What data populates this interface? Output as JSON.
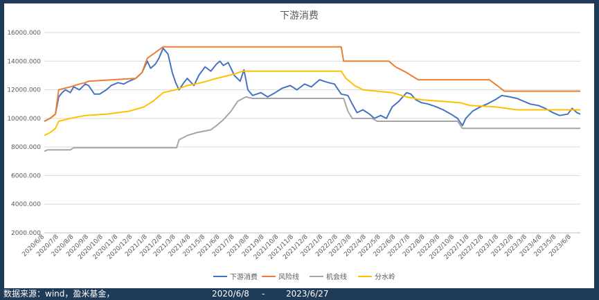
{
  "footer": {
    "source": "数据来源：wind，盈米基金，",
    "start_date": "2020/6/8",
    "separator": "-",
    "end_date": "2023/6/27"
  },
  "colors": {
    "background": "#1f3b57",
    "series": [
      "#4472c4",
      "#ed7d31",
      "#a5a5a5",
      "#ffc000"
    ]
  },
  "chart_data": {
    "type": "line",
    "title": "下游消费",
    "xlabel": "",
    "ylabel": "",
    "ylim": [
      2000,
      16000
    ],
    "yticks": [
      2000,
      4000,
      6000,
      8000,
      10000,
      12000,
      14000,
      16000
    ],
    "ytick_labels": [
      "2000.000",
      "4000.000",
      "6000.000",
      "8000.000",
      "10000.000",
      "12000.000",
      "14000.000",
      "16000.000"
    ],
    "xlim": [
      "2020/6/8",
      "2023/6/27"
    ],
    "xtick_labels": [
      "2020/6/8",
      "2020/7/8",
      "2020/8/8",
      "2020/9/8",
      "2020/10/8",
      "2020/11/8",
      "2020/12/8",
      "2021/1/8",
      "2021/2/8",
      "2021/3/8",
      "2021/4/8",
      "2021/5/8",
      "2021/6/8",
      "2021/7/8",
      "2021/8/8",
      "2021/9/8",
      "2021/10/8",
      "2021/11/8",
      "2021/12/8",
      "2022/1/8",
      "2022/2/8",
      "2022/3/8",
      "2022/4/8",
      "2022/5/8",
      "2022/6/8",
      "2022/7/8",
      "2022/8/8",
      "2022/9/8",
      "2022/10/8",
      "2022/11/8",
      "2022/12/8",
      "2023/1/8",
      "2023/2/8",
      "2023/3/8",
      "2023/4/8",
      "2023/5/8",
      "2023/6/8"
    ],
    "grid": true,
    "legend": "bottom",
    "series": [
      {
        "name": "下游消费",
        "points": [
          [
            "2020/6/8",
            9800
          ],
          [
            "2020/6/20",
            10000
          ],
          [
            "2020/7/1",
            10300
          ],
          [
            "2020/7/8",
            11500
          ],
          [
            "2020/7/15",
            11800
          ],
          [
            "2020/7/22",
            12000
          ],
          [
            "2020/8/1",
            11800
          ],
          [
            "2020/8/8",
            12200
          ],
          [
            "2020/8/20",
            12000
          ],
          [
            "2020/9/1",
            12400
          ],
          [
            "2020/9/8",
            12300
          ],
          [
            "2020/9/20",
            11700
          ],
          [
            "2020/10/1",
            11700
          ],
          [
            "2020/10/15",
            12000
          ],
          [
            "2020/10/25",
            12300
          ],
          [
            "2020/11/8",
            12500
          ],
          [
            "2020/11/20",
            12400
          ],
          [
            "2020/12/1",
            12600
          ],
          [
            "2020/12/15",
            12800
          ],
          [
            "2020/12/28",
            13200
          ],
          [
            "2021/1/8",
            14000
          ],
          [
            "2021/1/15",
            13500
          ],
          [
            "2021/1/25",
            13800
          ],
          [
            "2021/2/1",
            14200
          ],
          [
            "2021/2/10",
            14900
          ],
          [
            "2021/2/20",
            14500
          ],
          [
            "2021/3/1",
            13200
          ],
          [
            "2021/3/8",
            12500
          ],
          [
            "2021/3/15",
            12000
          ],
          [
            "2021/3/25",
            12500
          ],
          [
            "2021/4/1",
            12800
          ],
          [
            "2021/4/15",
            12300
          ],
          [
            "2021/4/25",
            13000
          ],
          [
            "2021/5/8",
            13600
          ],
          [
            "2021/5/20",
            13300
          ],
          [
            "2021/6/1",
            13800
          ],
          [
            "2021/6/8",
            14000
          ],
          [
            "2021/6/15",
            13700
          ],
          [
            "2021/6/25",
            13900
          ],
          [
            "2021/7/1",
            13500
          ],
          [
            "2021/7/8",
            13000
          ],
          [
            "2021/7/20",
            12600
          ],
          [
            "2021/7/28",
            13400
          ],
          [
            "2021/8/5",
            12000
          ],
          [
            "2021/8/15",
            11600
          ],
          [
            "2021/9/1",
            11800
          ],
          [
            "2021/9/15",
            11500
          ],
          [
            "2021/10/1",
            11800
          ],
          [
            "2021/10/15",
            12100
          ],
          [
            "2021/11/1",
            12300
          ],
          [
            "2021/11/15",
            12000
          ],
          [
            "2021/12/1",
            12400
          ],
          [
            "2021/12/15",
            12200
          ],
          [
            "2022/1/1",
            12700
          ],
          [
            "2022/1/10",
            12600
          ],
          [
            "2022/1/20",
            12500
          ],
          [
            "2022/2/1",
            12400
          ],
          [
            "2022/2/15",
            11700
          ],
          [
            "2022/3/1",
            11600
          ],
          [
            "2022/3/10",
            11000
          ],
          [
            "2022/3/20",
            10400
          ],
          [
            "2022/4/1",
            10600
          ],
          [
            "2022/4/15",
            10300
          ],
          [
            "2022/4/25",
            10000
          ],
          [
            "2022/5/8",
            10200
          ],
          [
            "2022/5/20",
            10000
          ],
          [
            "2022/6/1",
            10800
          ],
          [
            "2022/6/15",
            11200
          ],
          [
            "2022/7/1",
            11800
          ],
          [
            "2022/7/10",
            11700
          ],
          [
            "2022/7/20",
            11300
          ],
          [
            "2022/8/1",
            11100
          ],
          [
            "2022/8/15",
            11000
          ],
          [
            "2022/9/1",
            10800
          ],
          [
            "2022/9/15",
            10600
          ],
          [
            "2022/10/1",
            10300
          ],
          [
            "2022/10/15",
            10000
          ],
          [
            "2022/10/25",
            9500
          ],
          [
            "2022/11/1",
            10000
          ],
          [
            "2022/11/15",
            10500
          ],
          [
            "2022/12/1",
            10800
          ],
          [
            "2022/12/15",
            11000
          ],
          [
            "2023/1/1",
            11300
          ],
          [
            "2023/1/15",
            11600
          ],
          [
            "2023/2/1",
            11500
          ],
          [
            "2023/2/15",
            11400
          ],
          [
            "2023/3/1",
            11200
          ],
          [
            "2023/3/15",
            11000
          ],
          [
            "2023/4/1",
            10900
          ],
          [
            "2023/4/15",
            10700
          ],
          [
            "2023/5/1",
            10400
          ],
          [
            "2023/5/15",
            10200
          ],
          [
            "2023/6/1",
            10300
          ],
          [
            "2023/6/10",
            10700
          ],
          [
            "2023/6/20",
            10400
          ],
          [
            "2023/6/27",
            10300
          ]
        ]
      },
      {
        "name": "风险线",
        "points": [
          [
            "2020/6/8",
            9800
          ],
          [
            "2020/6/20",
            10000
          ],
          [
            "2020/7/1",
            10300
          ],
          [
            "2020/7/8",
            12000
          ],
          [
            "2020/8/1",
            12200
          ],
          [
            "2020/8/20",
            12400
          ],
          [
            "2020/9/1",
            12500
          ],
          [
            "2020/9/8",
            12600
          ],
          [
            "2020/12/15",
            12800
          ],
          [
            "2020/12/28",
            13200
          ],
          [
            "2021/1/8",
            14200
          ],
          [
            "2021/2/10",
            15000
          ],
          [
            "2022/2/15",
            15000
          ],
          [
            "2022/2/20",
            14000
          ],
          [
            "2022/5/25",
            14000
          ],
          [
            "2022/6/8",
            13600
          ],
          [
            "2022/7/1",
            13200
          ],
          [
            "2022/7/25",
            12700
          ],
          [
            "2022/12/20",
            12700
          ],
          [
            "2023/1/5",
            12300
          ],
          [
            "2023/1/20",
            11900
          ],
          [
            "2023/6/27",
            11900
          ]
        ]
      },
      {
        "name": "机会线",
        "points": [
          [
            "2020/6/8",
            7700
          ],
          [
            "2020/6/15",
            7800
          ],
          [
            "2020/8/1",
            7800
          ],
          [
            "2020/8/8",
            7950
          ],
          [
            "2021/3/10",
            7950
          ],
          [
            "2021/3/15",
            8500
          ],
          [
            "2021/4/1",
            8800
          ],
          [
            "2021/4/20",
            9000
          ],
          [
            "2021/5/20",
            9200
          ],
          [
            "2021/6/1",
            9500
          ],
          [
            "2021/6/15",
            9900
          ],
          [
            "2021/7/1",
            10500
          ],
          [
            "2021/7/15",
            11200
          ],
          [
            "2021/8/1",
            11500
          ],
          [
            "2021/8/15",
            11400
          ],
          [
            "2022/2/20",
            11400
          ],
          [
            "2022/3/1",
            10500
          ],
          [
            "2022/3/10",
            10000
          ],
          [
            "2022/4/20",
            10000
          ],
          [
            "2022/5/1",
            9800
          ],
          [
            "2022/10/15",
            9800
          ],
          [
            "2022/10/25",
            9300
          ],
          [
            "2023/6/27",
            9300
          ]
        ]
      },
      {
        "name": "分水岭",
        "points": [
          [
            "2020/6/8",
            8800
          ],
          [
            "2020/6/20",
            9000
          ],
          [
            "2020/7/1",
            9300
          ],
          [
            "2020/7/8",
            9800
          ],
          [
            "2020/8/1",
            10000
          ],
          [
            "2020/9/1",
            10200
          ],
          [
            "2020/10/15",
            10300
          ],
          [
            "2020/12/1",
            10500
          ],
          [
            "2021/1/1",
            10800
          ],
          [
            "2021/1/20",
            11200
          ],
          [
            "2021/2/10",
            11800
          ],
          [
            "2021/3/8",
            12000
          ],
          [
            "2021/4/1",
            12300
          ],
          [
            "2021/5/1",
            12500
          ],
          [
            "2021/6/1",
            12800
          ],
          [
            "2021/7/8",
            13100
          ],
          [
            "2021/7/25",
            13300
          ],
          [
            "2022/2/15",
            13300
          ],
          [
            "2022/2/25",
            12800
          ],
          [
            "2022/3/15",
            12300
          ],
          [
            "2022/4/1",
            12000
          ],
          [
            "2022/6/1",
            11800
          ],
          [
            "2022/7/1",
            11500
          ],
          [
            "2022/8/1",
            11300
          ],
          [
            "2022/10/20",
            11100
          ],
          [
            "2022/11/10",
            10900
          ],
          [
            "2023/1/1",
            10800
          ],
          [
            "2023/1/25",
            10700
          ],
          [
            "2023/2/15",
            10600
          ],
          [
            "2023/6/27",
            10600
          ]
        ]
      }
    ]
  }
}
